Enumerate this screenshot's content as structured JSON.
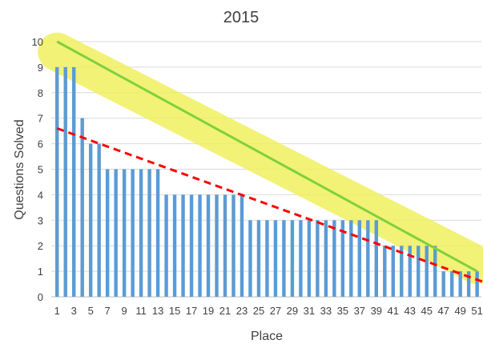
{
  "chart_data": {
    "type": "bar",
    "title": "2015",
    "xlabel": "Place",
    "ylabel": "Questions Solved",
    "ylim": [
      0,
      10
    ],
    "yticks": [
      0,
      1,
      2,
      3,
      4,
      5,
      6,
      7,
      8,
      9,
      10
    ],
    "grid": true,
    "categories": [
      1,
      2,
      3,
      4,
      5,
      6,
      7,
      8,
      9,
      10,
      11,
      12,
      13,
      14,
      15,
      16,
      17,
      18,
      19,
      20,
      21,
      22,
      23,
      24,
      25,
      26,
      27,
      28,
      29,
      30,
      31,
      32,
      33,
      34,
      35,
      36,
      37,
      38,
      39,
      40,
      41,
      42,
      43,
      44,
      45,
      46,
      47,
      48,
      49,
      50,
      51
    ],
    "xtick_labels": [
      "1",
      "3",
      "5",
      "7",
      "9",
      "11",
      "13",
      "15",
      "17",
      "19",
      "21",
      "23",
      "25",
      "27",
      "29",
      "31",
      "33",
      "35",
      "37",
      "39",
      "41",
      "43",
      "45",
      "47",
      "49",
      "51"
    ],
    "values": [
      9,
      9,
      9,
      7,
      6,
      6,
      5,
      5,
      5,
      5,
      5,
      5,
      5,
      4,
      4,
      4,
      4,
      4,
      4,
      4,
      4,
      4,
      4,
      3,
      3,
      3,
      3,
      3,
      3,
      3,
      3,
      3,
      3,
      3,
      3,
      3,
      3,
      3,
      3,
      2,
      2,
      2,
      2,
      2,
      2,
      2,
      1,
      1,
      1,
      1,
      1
    ],
    "bar_color": "#5b9bd5",
    "trend_lines": [
      {
        "style": "solid",
        "color": "#7fd13b",
        "from": [
          1,
          10
        ],
        "to": [
          51,
          1
        ]
      },
      {
        "style": "dashed",
        "color": "#ff0000",
        "from": [
          1,
          6.6
        ],
        "to": [
          52,
          0.55
        ]
      }
    ],
    "highlight": {
      "color": "#f0f060",
      "from": [
        1,
        9.6
      ],
      "to": [
        51,
        1.25
      ]
    }
  }
}
